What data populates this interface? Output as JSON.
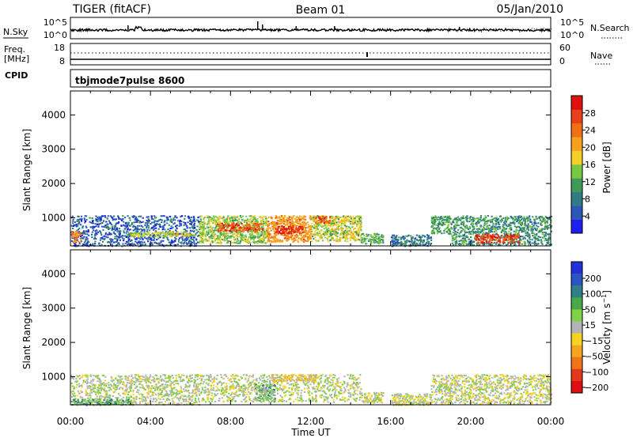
{
  "header": {
    "radar": "TIGER (fitACF)",
    "beam": "Beam 01",
    "date": "05/Jan/2010"
  },
  "strips": {
    "nsky_label": "N.Sky",
    "nsky_ticks": [
      "10^5",
      "10^0"
    ],
    "nsearch_label": "N.Search",
    "freq_label_line1": "Freq.",
    "freq_label_line2": "[MHz]",
    "freq_ticks": [
      "18",
      "8"
    ],
    "nave_label": "Nave",
    "nave_ticks": [
      "60",
      "0"
    ],
    "cpid_label": "CPID",
    "cpid_value": "tbjmode7pulse 8600"
  },
  "chart_data": [
    {
      "type": "heatmap",
      "title": "",
      "xlabel": "",
      "ylabel": "Slant Range [km]",
      "x_ticks": [
        "00:00",
        "04:00",
        "08:00",
        "12:00",
        "16:00",
        "20:00",
        "00:00"
      ],
      "xlim_hours": [
        0,
        24
      ],
      "y_ticks": [
        1000,
        2000,
        3000,
        4000
      ],
      "ylim": [
        180,
        4700
      ],
      "colorbar_label": "Power [dB]",
      "colorbar_ticks": [
        4,
        8,
        12,
        16,
        20,
        24,
        28
      ],
      "colorbar_range": [
        0,
        32
      ],
      "colorbar_colors": [
        "#1e1eee",
        "#2b57b8",
        "#317a86",
        "#3f9a5a",
        "#78c845",
        "#f4cf2a",
        "#f7a01d",
        "#f07016",
        "#e8401a",
        "#de1010"
      ],
      "regions": [
        {
          "t": [
            0.0,
            6.4
          ],
          "range_km": [
            190,
            1080
          ],
          "level_db": 6
        },
        {
          "t": [
            0.0,
            0.5
          ],
          "range_km": [
            300,
            620
          ],
          "level_db": 24
        },
        {
          "t": [
            2.8,
            6.2
          ],
          "range_km": [
            470,
            610
          ],
          "level_db": 16
        },
        {
          "t": [
            6.4,
            9.8
          ],
          "range_km": [
            280,
            1080
          ],
          "level_db": 14
        },
        {
          "t": [
            7.3,
            9.6
          ],
          "range_km": [
            620,
            860
          ],
          "level_db": 26
        },
        {
          "t": [
            9.8,
            12.0
          ],
          "range_km": [
            310,
            1080
          ],
          "level_db": 22
        },
        {
          "t": [
            10.2,
            11.6
          ],
          "range_km": [
            560,
            780
          ],
          "level_db": 30
        },
        {
          "t": [
            12.0,
            14.5
          ],
          "range_km": [
            330,
            1080
          ],
          "level_db": 16
        },
        {
          "t": [
            12.2,
            13.0
          ],
          "range_km": [
            860,
            1060
          ],
          "level_db": 26
        },
        {
          "t": [
            14.5,
            15.6
          ],
          "range_km": [
            260,
            560
          ],
          "level_db": 12
        },
        {
          "t": [
            16.0,
            18.0
          ],
          "range_km": [
            190,
            520
          ],
          "level_db": 8
        },
        {
          "t": [
            18.0,
            19.0
          ],
          "range_km": [
            550,
            1080
          ],
          "level_db": 12
        },
        {
          "t": [
            19.0,
            24.0
          ],
          "range_km": [
            220,
            1080
          ],
          "level_db": 10
        },
        {
          "t": [
            20.2,
            22.4
          ],
          "range_km": [
            280,
            540
          ],
          "level_db": 28
        }
      ]
    },
    {
      "type": "heatmap",
      "title": "",
      "xlabel": "Time UT",
      "ylabel": "Slant Range [km]",
      "x_ticks": [
        "00:00",
        "04:00",
        "08:00",
        "12:00",
        "16:00",
        "20:00",
        "00:00"
      ],
      "xlim_hours": [
        0,
        24
      ],
      "y_ticks": [
        1000,
        2000,
        3000,
        4000
      ],
      "ylim": [
        180,
        4700
      ],
      "colorbar_label": "Velocity [m s^-1]",
      "colorbar_ticks": [
        200,
        100,
        50,
        15,
        -15,
        -50,
        -100,
        -200
      ],
      "colorbar_colors": [
        "#2230d8",
        "#2a54c0",
        "#2f7f86",
        "#49a84a",
        "#7fd146",
        "#b4b4b4",
        "#f5d320",
        "#f5a520",
        "#f07418",
        "#e4381c",
        "#dc1010"
      ],
      "regions": [
        {
          "t": [
            0.0,
            6.4
          ],
          "range_km": [
            190,
            1080
          ],
          "velocity": 0
        },
        {
          "t": [
            0.0,
            3.0
          ],
          "range_km": [
            190,
            360
          ],
          "velocity": 40
        },
        {
          "t": [
            6.4,
            14.5
          ],
          "range_km": [
            280,
            1080
          ],
          "velocity": 0
        },
        {
          "t": [
            10.0,
            12.3
          ],
          "range_km": [
            880,
            1080
          ],
          "velocity": -30
        },
        {
          "t": [
            9.2,
            10.2
          ],
          "range_km": [
            300,
            800
          ],
          "velocity": 30
        },
        {
          "t": [
            14.5,
            15.6
          ],
          "range_km": [
            260,
            560
          ],
          "velocity": 0
        },
        {
          "t": [
            16.0,
            18.0
          ],
          "range_km": [
            190,
            520
          ],
          "velocity": 0
        },
        {
          "t": [
            18.0,
            24.0
          ],
          "range_km": [
            220,
            1080
          ],
          "velocity": 0
        }
      ]
    }
  ]
}
